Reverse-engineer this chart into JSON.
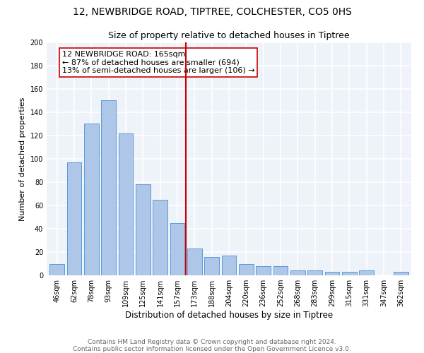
{
  "title1": "12, NEWBRIDGE ROAD, TIPTREE, COLCHESTER, CO5 0HS",
  "title2": "Size of property relative to detached houses in Tiptree",
  "xlabel": "Distribution of detached houses by size in Tiptree",
  "ylabel": "Number of detached properties",
  "categories": [
    "46sqm",
    "62sqm",
    "78sqm",
    "93sqm",
    "109sqm",
    "125sqm",
    "141sqm",
    "157sqm",
    "173sqm",
    "188sqm",
    "204sqm",
    "220sqm",
    "236sqm",
    "252sqm",
    "268sqm",
    "283sqm",
    "299sqm",
    "315sqm",
    "331sqm",
    "347sqm",
    "362sqm"
  ],
  "values": [
    10,
    97,
    130,
    150,
    122,
    78,
    65,
    45,
    23,
    16,
    17,
    10,
    8,
    8,
    4,
    4,
    3,
    3,
    4,
    0,
    3
  ],
  "bar_color": "#aec6e8",
  "bar_edge_color": "#5b9bd5",
  "vline_x": 7.5,
  "vline_color": "#cc0000",
  "annotation_lines": [
    "12 NEWBRIDGE ROAD: 165sqm",
    "← 87% of detached houses are smaller (694)",
    "13% of semi-detached houses are larger (106) →"
  ],
  "ylim": [
    0,
    200
  ],
  "yticks": [
    0,
    20,
    40,
    60,
    80,
    100,
    120,
    140,
    160,
    180,
    200
  ],
  "bg_color": "#eef2f9",
  "grid_color": "#ffffff",
  "footnote1": "Contains HM Land Registry data © Crown copyright and database right 2024.",
  "footnote2": "Contains public sector information licensed under the Open Government Licence v3.0.",
  "title1_fontsize": 10,
  "title2_fontsize": 9,
  "xlabel_fontsize": 8.5,
  "ylabel_fontsize": 8,
  "tick_fontsize": 7,
  "annotation_fontsize": 8,
  "footnote_fontsize": 6.5
}
